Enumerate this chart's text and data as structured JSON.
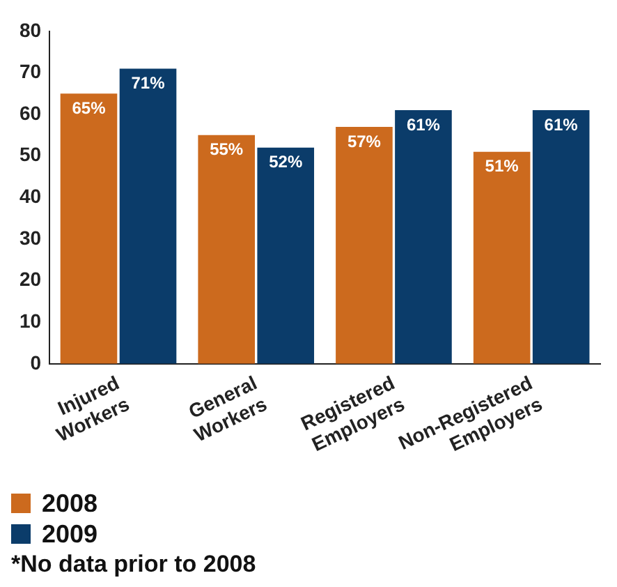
{
  "chart_data": {
    "type": "bar",
    "categories": [
      "Injured\nWorkers",
      "General\nWorkers",
      "Registered\nEmployers",
      "Non-Registered\nEmployers"
    ],
    "series": [
      {
        "name": "2008",
        "color": "#cc6a1e",
        "values": [
          65,
          55,
          57,
          51
        ],
        "value_labels": [
          "65%",
          "55%",
          "57%",
          "51%"
        ]
      },
      {
        "name": "2009",
        "color": "#0b3c6a",
        "values": [
          71,
          52,
          61,
          61
        ],
        "value_labels": [
          "71%",
          "52%",
          "61%",
          "61%"
        ]
      }
    ],
    "ylim": [
      0,
      80
    ],
    "yticks": [
      0,
      10,
      20,
      30,
      40,
      50,
      60,
      70,
      80
    ],
    "grid": false,
    "legend": "bottom left",
    "annotations": [
      "*No data prior to 2008"
    ]
  }
}
